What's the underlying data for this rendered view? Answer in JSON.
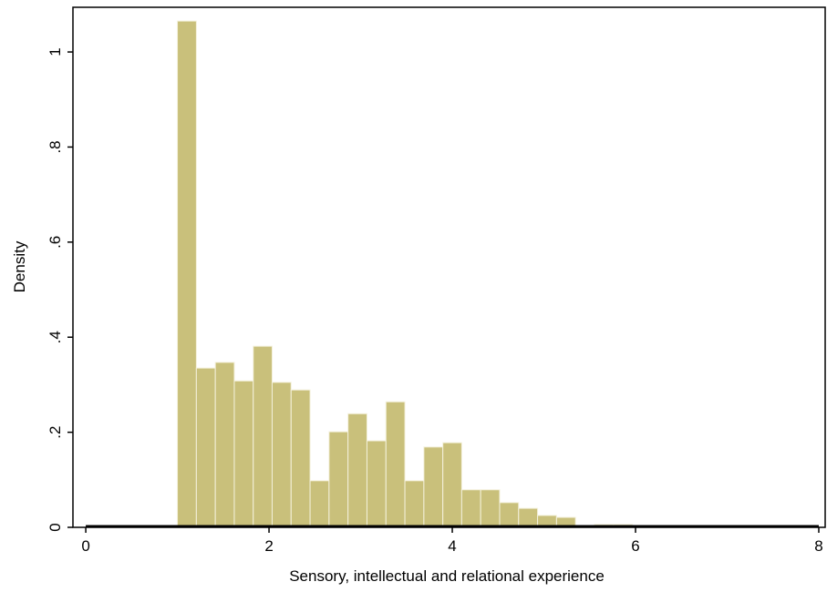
{
  "chart_data": {
    "type": "histogram",
    "x_label": "Sensory, intellectual and relational experience",
    "y_label": "Density",
    "bins": [
      1,
      1.207,
      1.414,
      1.621,
      1.828,
      2.034,
      2.241,
      2.448,
      2.655,
      2.862,
      3.069,
      3.276,
      3.483,
      3.69,
      3.897,
      4.103,
      4.31,
      4.517,
      4.724,
      4.931,
      5.138,
      5.345,
      5.552,
      5.759,
      5.966,
      6.172,
      6.379,
      6.586,
      6.793,
      7
    ],
    "values": [
      1.065,
      0.335,
      0.347,
      0.308,
      0.381,
      0.305,
      0.289,
      0.098,
      0.201,
      0.239,
      0.182,
      0.264,
      0.098,
      0.169,
      0.178,
      0.079,
      0.079,
      0.052,
      0.04,
      0.025,
      0.021,
      0,
      0.006,
      0.006,
      0.003,
      0.003,
      0,
      0,
      0.003
    ],
    "color": "#c9c07b",
    "xlim": [
      -0.14,
      8.02
    ],
    "ylim": [
      0,
      1.094
    ],
    "xticks": [
      0,
      2,
      4,
      6,
      8
    ],
    "yticks": [
      0,
      {
        "value": 0.2,
        "label": ".2"
      },
      {
        "value": 0.4,
        "label": ".4"
      },
      {
        "value": 0.6,
        "label": ".6"
      },
      {
        "value": 0.8,
        "label": ".8"
      },
      1
    ]
  }
}
